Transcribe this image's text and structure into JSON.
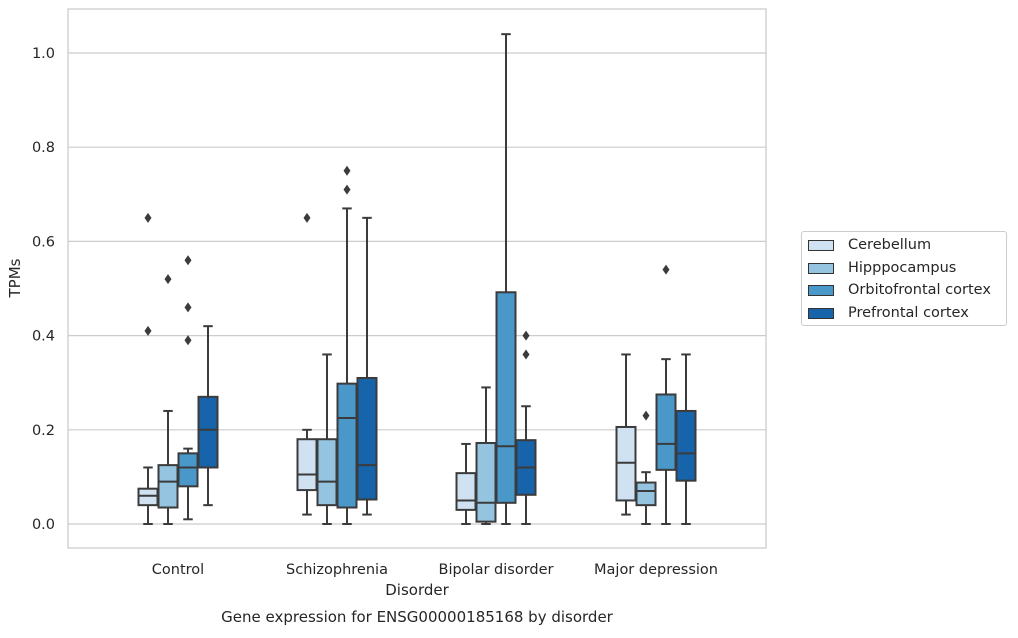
{
  "chart_data": {
    "type": "boxplot",
    "title": "Gene expression for ENSG00000185168 by disorder",
    "xlabel": "Disorder",
    "ylabel": "TPMs",
    "ylim": [
      -0.05,
      1.09
    ],
    "yticks": [
      0.0,
      0.2,
      0.4,
      0.6,
      0.8,
      1.0
    ],
    "ytick_labels": [
      "0.0",
      "0.2",
      "0.4",
      "0.6",
      "0.8",
      "1.0"
    ],
    "grid": "horizontal",
    "legend_position": "right",
    "categories": [
      "Control",
      "Schizophrenia",
      "Bipolar disorder",
      "Major depression"
    ],
    "series": [
      {
        "name": "Cerebellum",
        "color": "#d0e1f2",
        "boxes": [
          {
            "whisker_low": 0.0,
            "q1": 0.04,
            "median": 0.06,
            "q3": 0.075,
            "whisker_high": 0.12,
            "outliers": [
              0.41,
              0.65
            ]
          },
          {
            "whisker_low": 0.02,
            "q1": 0.072,
            "median": 0.105,
            "q3": 0.18,
            "whisker_high": 0.2,
            "outliers": [
              0.65
            ]
          },
          {
            "whisker_low": 0.0,
            "q1": 0.03,
            "median": 0.05,
            "q3": 0.108,
            "whisker_high": 0.17,
            "outliers": []
          },
          {
            "whisker_low": 0.02,
            "q1": 0.05,
            "median": 0.13,
            "q3": 0.206,
            "whisker_high": 0.36,
            "outliers": []
          }
        ]
      },
      {
        "name": "Hipppocampus",
        "color": "#94c4df",
        "boxes": [
          {
            "whisker_low": 0.0,
            "q1": 0.035,
            "median": 0.09,
            "q3": 0.125,
            "whisker_high": 0.24,
            "outliers": [
              0.52
            ]
          },
          {
            "whisker_low": 0.0,
            "q1": 0.04,
            "median": 0.09,
            "q3": 0.18,
            "whisker_high": 0.36,
            "outliers": []
          },
          {
            "whisker_low": 0.0,
            "q1": 0.005,
            "median": 0.045,
            "q3": 0.172,
            "whisker_high": 0.29,
            "outliers": []
          },
          {
            "whisker_low": 0.0,
            "q1": 0.04,
            "median": 0.07,
            "q3": 0.088,
            "whisker_high": 0.11,
            "outliers": [
              0.23
            ]
          }
        ]
      },
      {
        "name": "Orbitofrontal cortex",
        "color": "#4a98c9",
        "boxes": [
          {
            "whisker_low": 0.01,
            "q1": 0.08,
            "median": 0.12,
            "q3": 0.15,
            "whisker_high": 0.16,
            "outliers": [
              0.39,
              0.46,
              0.56
            ]
          },
          {
            "whisker_low": 0.0,
            "q1": 0.035,
            "median": 0.225,
            "q3": 0.298,
            "whisker_high": 0.67,
            "outliers": [
              0.71,
              0.75
            ]
          },
          {
            "whisker_low": 0.0,
            "q1": 0.045,
            "median": 0.165,
            "q3": 0.492,
            "whisker_high": 1.04,
            "outliers": []
          },
          {
            "whisker_low": 0.0,
            "q1": 0.115,
            "median": 0.17,
            "q3": 0.275,
            "whisker_high": 0.35,
            "outliers": [
              0.54
            ]
          }
        ]
      },
      {
        "name": "Prefrontal cortex",
        "color": "#1764ab",
        "boxes": [
          {
            "whisker_low": 0.04,
            "q1": 0.12,
            "median": 0.2,
            "q3": 0.27,
            "whisker_high": 0.42,
            "outliers": []
          },
          {
            "whisker_low": 0.02,
            "q1": 0.052,
            "median": 0.125,
            "q3": 0.31,
            "whisker_high": 0.65,
            "outliers": []
          },
          {
            "whisker_low": 0.0,
            "q1": 0.062,
            "median": 0.12,
            "q3": 0.178,
            "whisker_high": 0.25,
            "outliers": [
              0.36,
              0.4
            ]
          },
          {
            "whisker_low": 0.0,
            "q1": 0.092,
            "median": 0.15,
            "q3": 0.24,
            "whisker_high": 0.36,
            "outliers": []
          }
        ]
      }
    ]
  }
}
